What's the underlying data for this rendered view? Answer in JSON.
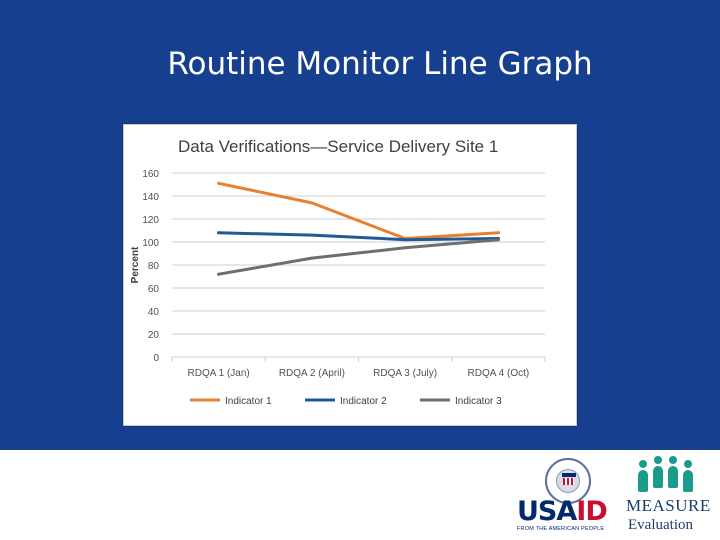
{
  "slide": {
    "title": "Routine Monitor Line Graph"
  },
  "logos": {
    "usaid": {
      "word_a": "USA",
      "word_b": "ID",
      "tagline": "FROM THE AMERICAN PEOPLE"
    },
    "measure": {
      "word": "MEASURE",
      "sub": "Evaluation"
    }
  },
  "colors": {
    "banner": "#173f8f",
    "indicator_1": "#e8812f",
    "indicator_2": "#1f5a96",
    "indicator_3": "#6e6e6e",
    "grid": "#cfcfcf"
  },
  "chart_data": {
    "type": "line",
    "title": "Data Verifications—Service  Delivery Site 1",
    "xlabel": "",
    "ylabel": "Percent",
    "categories": [
      "RDQA 1 (Jan)",
      "RDQA 2 (April)",
      "RDQA 3 (July)",
      "RDQA 4 (Oct)"
    ],
    "series": [
      {
        "name": "Indicator 1",
        "values": [
          151,
          134,
          103,
          108
        ]
      },
      {
        "name": "Indicator 2",
        "values": [
          108,
          106,
          102,
          103
        ]
      },
      {
        "name": "Indicator 3",
        "values": [
          72,
          86,
          95,
          102
        ]
      }
    ],
    "ylim": [
      0,
      160
    ],
    "yticks": [
      0,
      20,
      40,
      60,
      80,
      100,
      120,
      140,
      160
    ],
    "grid": true,
    "legend": "bottom"
  }
}
